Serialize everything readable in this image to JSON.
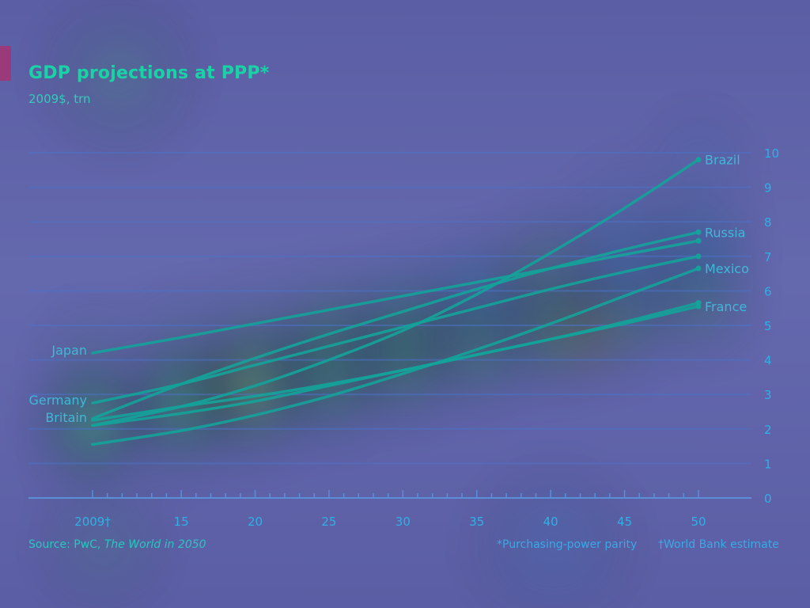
{
  "header": {
    "title": "GDP projections at PPP*",
    "subtitle": "2009$, trn"
  },
  "footer": {
    "source_prefix": "Source: PwC, ",
    "source_italic": "The World in 2050",
    "note_ppp": "*Purchasing-power parity",
    "note_wb": "†World Bank estimate"
  },
  "colors": {
    "line": "#14a39a",
    "grid": "#4c73c8",
    "accent": "#9a3a7a"
  },
  "chart_data": {
    "type": "line",
    "title": "GDP projections at PPP*",
    "subtitle": "2009$, trn",
    "xlabel": "",
    "ylabel": "",
    "x_tick_labels": [
      "2009†",
      "15",
      "20",
      "25",
      "30",
      "35",
      "40",
      "45",
      "50"
    ],
    "x_ticks": [
      2009,
      2015,
      2020,
      2025,
      2030,
      2035,
      2040,
      2045,
      2050
    ],
    "xlim": [
      2009,
      2050
    ],
    "ylim": [
      0,
      10
    ],
    "y_ticks": [
      0,
      1,
      2,
      3,
      4,
      5,
      6,
      7,
      8,
      9,
      10
    ],
    "y_axis_side": "right",
    "grid": true,
    "legend": "inline labels",
    "series": [
      {
        "name": "Brazil",
        "label_at": "end",
        "x": [
          2009,
          2015,
          2020,
          2025,
          2030,
          2035,
          2040,
          2045,
          2050
        ],
        "values": [
          2.1,
          2.65,
          3.25,
          4.0,
          4.85,
          5.9,
          7.1,
          8.4,
          9.8
        ]
      },
      {
        "name": "Russia",
        "label_at": "end",
        "x": [
          2009,
          2015,
          2020,
          2025,
          2030,
          2035,
          2040,
          2045,
          2050
        ],
        "values": [
          2.3,
          3.3,
          4.05,
          4.75,
          5.4,
          6.05,
          6.65,
          7.2,
          7.7
        ]
      },
      {
        "name": "Mexico",
        "label_at": "end",
        "x": [
          2009,
          2015,
          2020,
          2025,
          2030,
          2035,
          2040,
          2045,
          2050
        ],
        "values": [
          1.55,
          1.95,
          2.4,
          2.95,
          3.6,
          4.3,
          5.05,
          5.85,
          6.65
        ]
      },
      {
        "name": "France",
        "label_at": "end",
        "x": [
          2009,
          2015,
          2020,
          2025,
          2030,
          2035,
          2040,
          2045,
          2050
        ],
        "values": [
          2.1,
          2.45,
          2.8,
          3.25,
          3.7,
          4.15,
          4.6,
          5.05,
          5.55
        ]
      },
      {
        "name": "Japan",
        "label_at": "start",
        "x": [
          2009,
          2015,
          2020,
          2025,
          2030,
          2035,
          2040,
          2045,
          2050
        ],
        "values": [
          4.2,
          4.65,
          5.05,
          5.45,
          5.85,
          6.25,
          6.65,
          7.05,
          7.45
        ]
      },
      {
        "name": "Germany",
        "label_at": "start",
        "x": [
          2009,
          2015,
          2020,
          2025,
          2030,
          2035,
          2040,
          2045,
          2050
        ],
        "values": [
          2.75,
          3.3,
          3.85,
          4.4,
          4.95,
          5.5,
          6.05,
          6.55,
          7.0
        ]
      },
      {
        "name": "Britain",
        "label_at": "start",
        "x": [
          2009,
          2015,
          2020,
          2025,
          2030,
          2035,
          2040,
          2045,
          2050
        ],
        "values": [
          2.25,
          2.65,
          2.95,
          3.3,
          3.7,
          4.15,
          4.6,
          5.1,
          5.65
        ]
      }
    ]
  }
}
